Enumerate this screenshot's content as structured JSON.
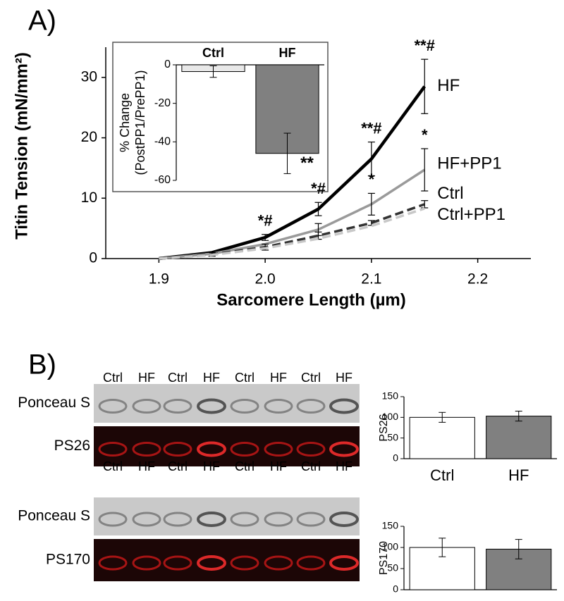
{
  "panels": {
    "a": "A)",
    "b": "B)"
  },
  "blots": [
    {
      "lanes": [
        "Ctrl",
        "HF",
        "Ctrl",
        "HF",
        "Ctrl",
        "HF",
        "Ctrl",
        "HF"
      ],
      "rows": [
        "Ponceau S",
        "PS26"
      ]
    },
    {
      "lanes": [
        "Ctrl",
        "HF",
        "Ctrl",
        "HF",
        "Ctrl",
        "HF",
        "Ctrl",
        "HF"
      ],
      "rows": [
        "Ponceau S",
        "PS170"
      ]
    }
  ],
  "chart_data": [
    {
      "type": "line",
      "xlabel": "Sarcomere Length (µm)",
      "ylabel": "Titin Tension (mN/mm²)",
      "x": [
        1.9,
        1.95,
        2.0,
        2.05,
        2.1,
        2.15
      ],
      "xlim": [
        1.85,
        2.25
      ],
      "ylim": [
        0,
        35
      ],
      "xticks": [
        1.9,
        {
          "value": 2,
          "label": "2.0"
        },
        2.1,
        2.2
      ],
      "yticks": [
        0,
        10,
        20,
        30
      ],
      "series": [
        {
          "name": "HF",
          "color": "#000000",
          "style": "solid",
          "values": [
            0,
            1.0,
            3.5,
            8.2,
            16.5,
            28.5
          ],
          "errors": [
            null,
            null,
            0.5,
            1.1,
            2.8,
            4.5
          ],
          "markers": [
            null,
            null,
            "*#",
            "*#",
            "**#",
            "**#"
          ]
        },
        {
          "name": "HF+PP1",
          "color": "#9a9a9a",
          "style": "solid",
          "values": [
            0,
            0.8,
            2.4,
            4.8,
            9.0,
            14.7
          ],
          "errors": [
            null,
            null,
            null,
            1.0,
            1.8,
            3.5
          ],
          "markers": [
            null,
            null,
            null,
            null,
            "*",
            "*"
          ]
        },
        {
          "name": "Ctrl",
          "color": "#333333",
          "style": "dashed",
          "values": [
            0,
            0.7,
            1.9,
            3.8,
            5.9,
            9.0
          ],
          "errors": [
            null,
            0.3,
            0.5,
            0.6,
            0.4,
            0.6
          ],
          "markers": [
            null,
            null,
            null,
            null,
            null,
            null
          ]
        },
        {
          "name": "Ctrl+PP1",
          "color": "#c8c8c8",
          "style": "dashed",
          "values": [
            0,
            0.6,
            1.7,
            3.3,
            5.4,
            8.3
          ],
          "errors": [
            null,
            null,
            null,
            null,
            null,
            null
          ],
          "markers": [
            null,
            null,
            null,
            null,
            null,
            null
          ]
        }
      ]
    },
    {
      "type": "bar",
      "ylabel": [
        "% Change",
        "(PostPP1/PrePP1)"
      ],
      "categories": [
        "Ctrl",
        "HF"
      ],
      "values": [
        -3.5,
        -46
      ],
      "errors": [
        3,
        10.5
      ],
      "markers": [
        null,
        "**"
      ],
      "colors": [
        "#e8e8e8",
        "#808080"
      ],
      "ylim": [
        -60,
        0
      ],
      "yticks": [
        0,
        -20,
        -40,
        -60
      ]
    },
    {
      "type": "bar",
      "ylabel": "PS26",
      "categories": [
        "Ctrl",
        "HF"
      ],
      "values": [
        100,
        103
      ],
      "errors": [
        12,
        12
      ],
      "markers": [
        null,
        null
      ],
      "colors": [
        "#ffffff",
        "#808080"
      ],
      "ylim": [
        0,
        150
      ],
      "yticks": [
        0,
        50,
        100,
        150
      ]
    },
    {
      "type": "bar",
      "ylabel": "PS170",
      "categories": [
        null,
        null
      ],
      "values": [
        100,
        96
      ],
      "errors": [
        22,
        23
      ],
      "markers": [
        null,
        null
      ],
      "colors": [
        "#ffffff",
        "#808080"
      ],
      "ylim": [
        0,
        150
      ],
      "yticks": [
        0,
        50,
        100,
        150
      ]
    }
  ]
}
